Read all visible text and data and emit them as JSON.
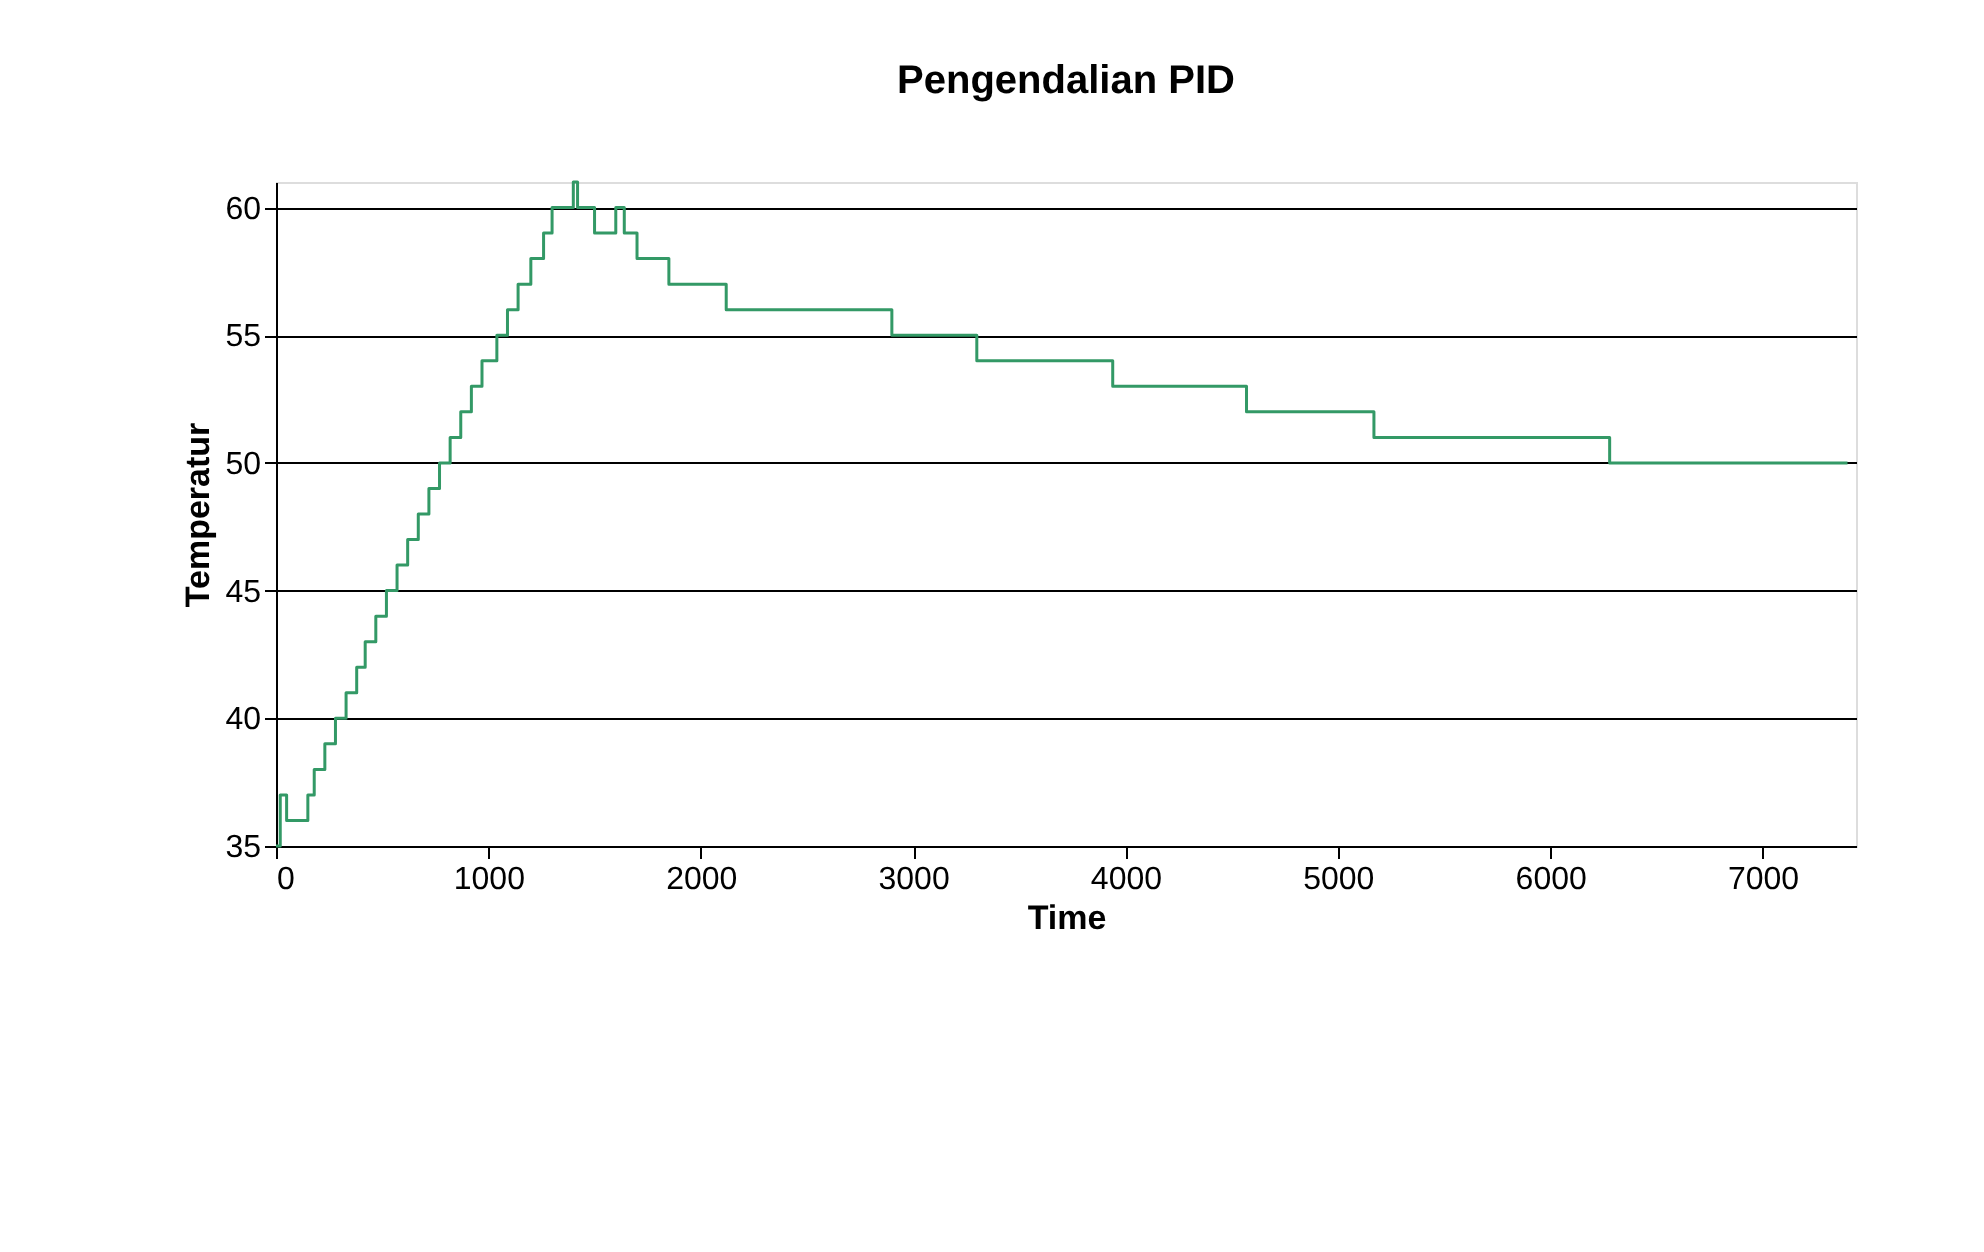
{
  "chart_data": {
    "type": "step",
    "title": "Pengendalian PID",
    "xlabel": "Time",
    "ylabel": "Temperatur",
    "x": [
      0,
      20,
      50,
      100,
      150,
      180,
      230,
      280,
      330,
      380,
      420,
      470,
      520,
      570,
      620,
      670,
      720,
      770,
      820,
      870,
      920,
      970,
      1040,
      1090,
      1140,
      1200,
      1260,
      1300,
      1400,
      1420,
      1500,
      1600,
      1640,
      1700,
      1850,
      2000,
      2120,
      2900,
      3300,
      3940,
      4570,
      5170,
      6280,
      7400
    ],
    "series": [
      {
        "color": "#339966",
        "values": [
          35,
          37,
          36,
          36,
          37,
          38,
          39,
          40,
          41,
          42,
          43,
          44,
          45,
          46,
          47,
          48,
          49,
          50,
          51,
          52,
          53,
          54,
          55,
          56,
          57,
          58,
          59,
          60,
          61,
          60,
          59,
          60,
          59,
          58,
          57,
          57,
          56,
          55,
          54,
          53,
          52,
          51,
          50,
          50
        ]
      }
    ],
    "xlim": [
      0,
      7440
    ],
    "xticks": [
      0,
      1000,
      2000,
      3000,
      4000,
      5000,
      6000,
      7000
    ],
    "ylim": [
      35,
      61
    ],
    "yticks": [
      35,
      40,
      45,
      50,
      55,
      60
    ],
    "grid": "y",
    "marker": "none",
    "line_style": "solid"
  }
}
